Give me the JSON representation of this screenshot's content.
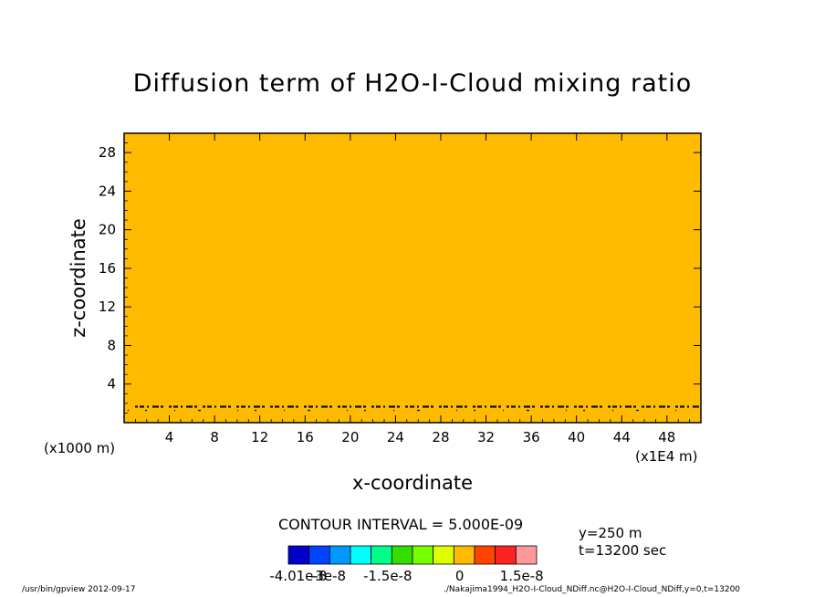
{
  "chart_data": {
    "type": "heatmap",
    "title": "Diffusion term of H2O-I-Cloud mixing ratio",
    "xlabel": "x-coordinate",
    "ylabel": "z-coordinate",
    "x_scale_note": "(x1000 m)",
    "x_unit_note": "(x1E4 m)",
    "xlim": [
      0,
      51
    ],
    "ylim": [
      0,
      30
    ],
    "xticks": [
      "4",
      "8",
      "12",
      "16",
      "20",
      "24",
      "28",
      "32",
      "36",
      "40",
      "44",
      "48"
    ],
    "yticks": [
      "4",
      "8",
      "12",
      "16",
      "20",
      "24",
      "28"
    ],
    "fill_color": "#ffbb00",
    "contour_interval": "CONTOUR INTERVAL = 5.000E-09",
    "colorbar": {
      "colors": [
        "#0000cc",
        "#0044ff",
        "#0099ff",
        "#00ffff",
        "#00ff88",
        "#33dd00",
        "#77ff00",
        "#ddff00",
        "#ffbb00",
        "#ff4400",
        "#ff2222",
        "#ff9999"
      ],
      "labels": [
        "-4.01e-8",
        "-3e-8",
        "-1.5e-8",
        "0",
        "1.5e-8"
      ]
    },
    "contour_band_z": 2.6
  },
  "info": {
    "y": "y=250  m",
    "t": "t=13200  sec"
  },
  "footer": {
    "left": "/usr/bin/gpview   2012-09-17",
    "right": "./Nakajima1994_H2O-I-Cloud_NDiff.nc@H2O-I-Cloud_NDiff,y=0,t=13200"
  }
}
